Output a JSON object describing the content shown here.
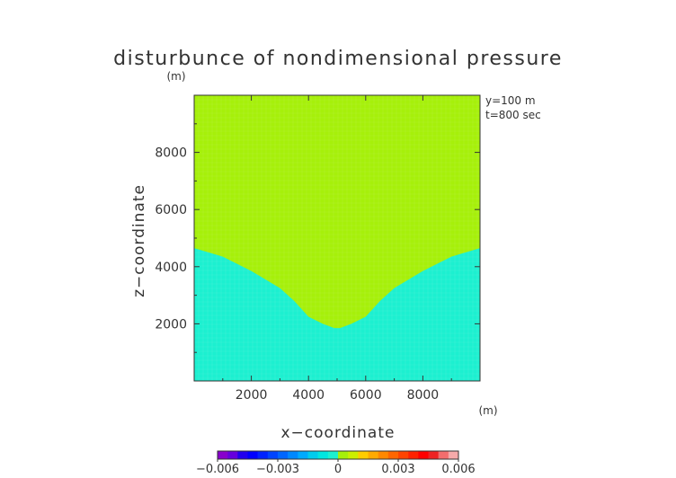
{
  "chart_data": {
    "type": "heatmap",
    "title": "disturbunce of nondimensional pressure",
    "xlabel": "x−coordinate",
    "ylabel": "z−coordinate",
    "xunit": "(m)",
    "yunit": "(m)",
    "annotations": [
      "y=100 m",
      "t=800 sec"
    ],
    "xlim": [
      0,
      10000
    ],
    "ylim": [
      0,
      10000
    ],
    "xticks": [
      2000,
      4000,
      6000,
      8000
    ],
    "yticks": [
      2000,
      4000,
      6000,
      8000
    ],
    "xticklabels": [
      "2000",
      "4000",
      "6000",
      "8000"
    ],
    "yticklabels": [
      "2000",
      "4000",
      "6000",
      "8000"
    ],
    "regions": [
      {
        "level_range": [
          0,
          0.0005
        ],
        "color": "#a6f00a"
      },
      {
        "level_range": [
          -0.0005,
          0
        ],
        "color": "#1cf0d0"
      }
    ],
    "boundary": {
      "x": [
        0,
        1000,
        2000,
        3000,
        3500,
        4000,
        4500,
        4900,
        5100,
        5500,
        6000,
        6500,
        7000,
        8000,
        9000,
        10000
      ],
      "z": [
        4650,
        4350,
        3850,
        3250,
        2800,
        2250,
        2000,
        1850,
        1850,
        2000,
        2250,
        2800,
        3250,
        3850,
        4350,
        4650
      ]
    },
    "colorbar": {
      "levels": [
        -0.006,
        -0.0055,
        -0.005,
        -0.0045,
        -0.004,
        -0.0035,
        -0.003,
        -0.0025,
        -0.002,
        -0.0015,
        -0.001,
        -0.0005,
        0,
        0.0005,
        0.001,
        0.0015,
        0.002,
        0.0025,
        0.003,
        0.0035,
        0.004,
        0.0045,
        0.005,
        0.0055,
        0.006
      ],
      "colors": [
        "#8800cc",
        "#6600dd",
        "#2200ee",
        "#0000ff",
        "#0022ff",
        "#0044ff",
        "#0066ff",
        "#0088ff",
        "#00aaff",
        "#00ccee",
        "#00e6e0",
        "#1cf0d0",
        "#a6f00a",
        "#ccee00",
        "#ffcc00",
        "#ffaa00",
        "#ff8800",
        "#ff6600",
        "#ff4400",
        "#ff2200",
        "#ff0000",
        "#ee2222",
        "#f26d6d",
        "#f5aaaa"
      ],
      "ticks": [
        -0.006,
        -0.003,
        0,
        0.003,
        0.006
      ],
      "ticklabels": [
        "−0.006",
        "−0.003",
        "0",
        "0.003",
        "0.006"
      ]
    }
  }
}
